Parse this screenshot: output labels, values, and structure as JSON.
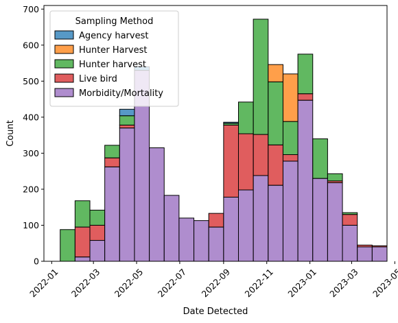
{
  "chart_data": {
    "type": "bar",
    "stacked": true,
    "xlabel": "Date Detected",
    "ylabel": "Count",
    "x_axis_type": "date",
    "xlim": [
      "2021-12-21",
      "2023-04-20"
    ],
    "ylim": [
      0,
      710
    ],
    "x_ticks": [
      "2022-01-01",
      "2022-03-01",
      "2022-05-01",
      "2022-07-01",
      "2022-09-01",
      "2022-11-01",
      "2023-01-01",
      "2023-03-01",
      "2023-05-01"
    ],
    "x_tick_labels": [
      "2022-01",
      "2022-03",
      "2022-05",
      "2022-07",
      "2022-09",
      "2022-11",
      "2023-01",
      "2023-03",
      "2023-05"
    ],
    "y_ticks": [
      0,
      100,
      200,
      300,
      400,
      500,
      600,
      700
    ],
    "grid": false,
    "legend": {
      "title": "Sampling Method",
      "position": "top-left"
    },
    "bins": [
      [
        "2022-01-13",
        "2022-02-03"
      ],
      [
        "2022-02-03",
        "2022-02-24"
      ],
      [
        "2022-02-24",
        "2022-03-17"
      ],
      [
        "2022-03-17",
        "2022-04-07"
      ],
      [
        "2022-04-07",
        "2022-04-28"
      ],
      [
        "2022-04-28",
        "2022-05-19"
      ],
      [
        "2022-05-19",
        "2022-06-09"
      ],
      [
        "2022-06-09",
        "2022-06-30"
      ],
      [
        "2022-06-30",
        "2022-07-21"
      ],
      [
        "2022-07-21",
        "2022-08-11"
      ],
      [
        "2022-08-11",
        "2022-09-01"
      ],
      [
        "2022-09-01",
        "2022-09-22"
      ],
      [
        "2022-09-22",
        "2022-10-13"
      ],
      [
        "2022-10-13",
        "2022-11-03"
      ],
      [
        "2022-11-03",
        "2022-11-24"
      ],
      [
        "2022-11-24",
        "2022-12-15"
      ],
      [
        "2022-12-15",
        "2023-01-05"
      ],
      [
        "2023-01-05",
        "2023-01-26"
      ],
      [
        "2023-01-26",
        "2023-02-16"
      ],
      [
        "2023-02-16",
        "2023-03-09"
      ],
      [
        "2023-03-09",
        "2023-03-30"
      ],
      [
        "2023-03-30",
        "2023-04-20"
      ]
    ],
    "series": [
      {
        "name": "Morbidity/Mortality",
        "color": "#9467bd",
        "values": [
          0,
          12,
          58,
          262,
          370,
          530,
          315,
          183,
          120,
          113,
          95,
          178,
          198,
          238,
          211,
          278,
          447,
          230,
          218,
          100,
          40,
          40
        ]
      },
      {
        "name": "Live bird",
        "color": "#d62728",
        "values": [
          0,
          83,
          42,
          25,
          8,
          0,
          0,
          0,
          0,
          0,
          38,
          200,
          156,
          114,
          112,
          18,
          18,
          0,
          5,
          30,
          5,
          3
        ]
      },
      {
        "name": "Hunter harvest",
        "color": "#2ca02c",
        "values": [
          88,
          73,
          42,
          35,
          26,
          0,
          0,
          0,
          0,
          0,
          0,
          5,
          88,
          320,
          175,
          92,
          110,
          110,
          20,
          5,
          0,
          0
        ]
      },
      {
        "name": "Hunter Harvest",
        "color": "#ff7f0e",
        "values": [
          0,
          0,
          0,
          0,
          0,
          0,
          0,
          0,
          0,
          0,
          0,
          0,
          0,
          0,
          48,
          132,
          0,
          0,
          0,
          0,
          0,
          0
        ]
      },
      {
        "name": "Agency harvest",
        "color": "#1f77b4",
        "values": [
          0,
          0,
          0,
          0,
          18,
          10,
          0,
          0,
          0,
          0,
          0,
          3,
          0,
          0,
          0,
          0,
          0,
          0,
          0,
          0,
          0,
          0
        ]
      }
    ]
  }
}
